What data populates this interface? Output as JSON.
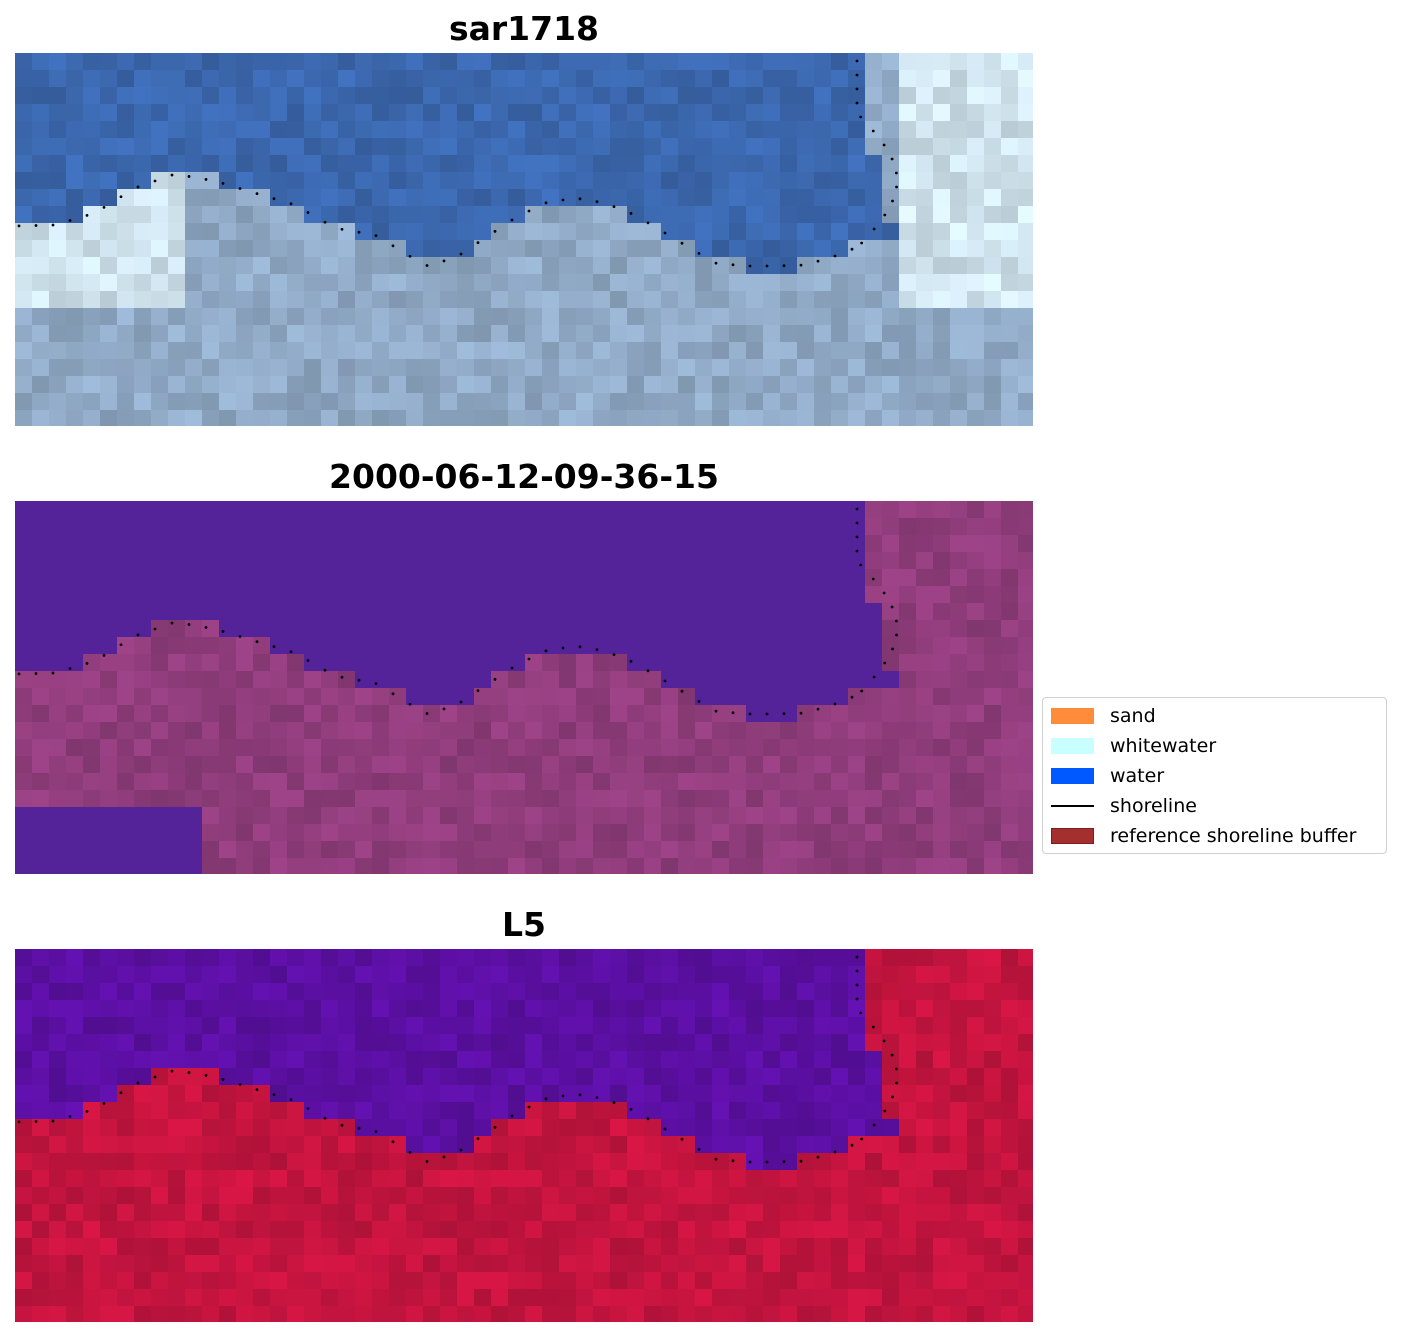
{
  "panels": [
    {
      "title": "sar1718",
      "style": "rgb"
    },
    {
      "title": "2000-06-12-09-36-15",
      "style": "classified"
    },
    {
      "title": "L5",
      "style": "index"
    }
  ],
  "legend": {
    "items": [
      {
        "label": "sand",
        "type": "patch",
        "color": "#ff8c3a"
      },
      {
        "label": "whitewater",
        "type": "patch",
        "color": "#c8ffff"
      },
      {
        "label": "water",
        "type": "patch",
        "color": "#0059ff"
      },
      {
        "label": "shoreline",
        "type": "line",
        "color": "#000000"
      },
      {
        "label": "reference shoreline buffer",
        "type": "patch",
        "color": "#a3302f",
        "edge": "#7a1d1c"
      }
    ]
  },
  "colors": {
    "water_class": "#54239a",
    "land_class": "#8e3c7a",
    "index_water": "#5a0fa0",
    "index_land": "#c2143e",
    "rgb_water": "#3b67ad",
    "rgb_land": "#8fa8c4"
  }
}
